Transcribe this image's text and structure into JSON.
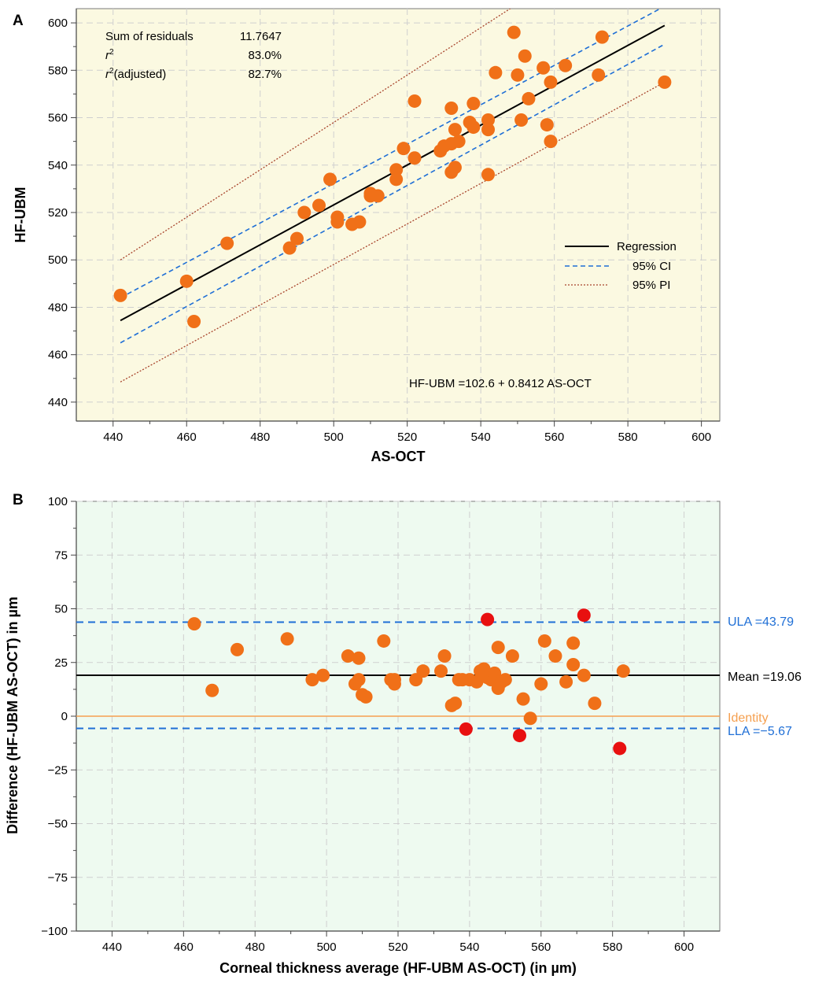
{
  "chart_data": [
    {
      "panel": "A",
      "type": "scatter",
      "xlabel": "AS-OCT",
      "ylabel": "HF-UBM",
      "xlim": [
        430,
        605
      ],
      "ylim": [
        432,
        606
      ],
      "x_ticks": [
        440,
        460,
        480,
        500,
        520,
        540,
        560,
        580,
        600
      ],
      "y_ticks": [
        440,
        460,
        480,
        500,
        520,
        540,
        560,
        580,
        600
      ],
      "grid": true,
      "background": "#fbf9e1",
      "stats": [
        {
          "label": "Sum of residuals",
          "value": "11.7647"
        },
        {
          "label": "r",
          "sup": "2",
          "label_suffix": "",
          "value": "83.0%"
        },
        {
          "label": "r",
          "sup": "2",
          "label_suffix": "(adjusted)",
          "value": "82.7%"
        }
      ],
      "equation": "HF-UBM =102.6 + 0.8412 AS-OCT",
      "legend": {
        "placement": "right",
        "entries": [
          {
            "name": "Regression",
            "style": "solid",
            "color": "#000000"
          },
          {
            "name": "95% CI",
            "style": "dashed",
            "color": "#1f6fd6"
          },
          {
            "name": "95% PI",
            "style": "dotted",
            "color": "#a8442c"
          }
        ]
      },
      "regression": {
        "intercept": 102.6,
        "slope": 0.8412,
        "x_range": [
          442,
          590
        ]
      },
      "ci_lines": [
        {
          "x": [
            442,
            590
          ],
          "y": [
            465,
            591
          ]
        },
        {
          "x": [
            442,
            590
          ],
          "y": [
            484,
            607
          ]
        }
      ],
      "pi_lines": [
        {
          "x": [
            442,
            590
          ],
          "y": [
            500,
            648
          ]
        },
        {
          "x": [
            442,
            590
          ],
          "y": [
            448.5,
            575
          ]
        }
      ],
      "points": [
        {
          "x": 442,
          "y": 485
        },
        {
          "x": 460,
          "y": 491
        },
        {
          "x": 462,
          "y": 474
        },
        {
          "x": 471,
          "y": 507
        },
        {
          "x": 488,
          "y": 505
        },
        {
          "x": 490,
          "y": 509
        },
        {
          "x": 492,
          "y": 520
        },
        {
          "x": 496,
          "y": 523
        },
        {
          "x": 499,
          "y": 534
        },
        {
          "x": 501,
          "y": 516
        },
        {
          "x": 501,
          "y": 518
        },
        {
          "x": 505,
          "y": 515
        },
        {
          "x": 507,
          "y": 516
        },
        {
          "x": 510,
          "y": 527
        },
        {
          "x": 510,
          "y": 528
        },
        {
          "x": 512,
          "y": 527
        },
        {
          "x": 517,
          "y": 534
        },
        {
          "x": 517,
          "y": 538
        },
        {
          "x": 519,
          "y": 547
        },
        {
          "x": 522,
          "y": 543
        },
        {
          "x": 522,
          "y": 567
        },
        {
          "x": 529,
          "y": 546
        },
        {
          "x": 530,
          "y": 548
        },
        {
          "x": 532,
          "y": 549
        },
        {
          "x": 532,
          "y": 564
        },
        {
          "x": 532,
          "y": 537
        },
        {
          "x": 533,
          "y": 539
        },
        {
          "x": 533,
          "y": 555
        },
        {
          "x": 534,
          "y": 550
        },
        {
          "x": 537,
          "y": 558
        },
        {
          "x": 538,
          "y": 566
        },
        {
          "x": 538,
          "y": 556
        },
        {
          "x": 542,
          "y": 559
        },
        {
          "x": 542,
          "y": 555
        },
        {
          "x": 542,
          "y": 536
        },
        {
          "x": 544,
          "y": 579
        },
        {
          "x": 549,
          "y": 596
        },
        {
          "x": 550,
          "y": 578
        },
        {
          "x": 551,
          "y": 559
        },
        {
          "x": 552,
          "y": 586
        },
        {
          "x": 553,
          "y": 568
        },
        {
          "x": 557,
          "y": 581
        },
        {
          "x": 558,
          "y": 557
        },
        {
          "x": 559,
          "y": 575
        },
        {
          "x": 559,
          "y": 550
        },
        {
          "x": 563,
          "y": 582
        },
        {
          "x": 572,
          "y": 578
        },
        {
          "x": 573,
          "y": 594
        },
        {
          "x": 590,
          "y": 575
        }
      ],
      "point_color": "#f07018"
    },
    {
      "panel": "B",
      "type": "scatter",
      "xlabel": "Corneal thickness average (HF-UBM AS-OCT) (in µm)",
      "ylabel": "Difference (HF-UBM AS-OCT) in µm",
      "xlim": [
        430,
        610
      ],
      "ylim": [
        -100,
        100
      ],
      "x_ticks": [
        440,
        460,
        480,
        500,
        520,
        540,
        560,
        580,
        600
      ],
      "y_ticks": [
        -100,
        -75,
        -50,
        -25,
        0,
        25,
        50,
        75,
        100
      ],
      "y_tick_labels": [
        "−100",
        "−75",
        "−50",
        "−25",
        "0",
        "25",
        "50",
        "75",
        "100"
      ],
      "grid": true,
      "background": "#eefaf0",
      "reference_lines": [
        {
          "name": "ULA",
          "label": "ULA =43.79",
          "value": 43.79,
          "style": "dashed",
          "color": "#1f6fd6"
        },
        {
          "name": "Mean",
          "label": "Mean =19.06",
          "value": 19.06,
          "style": "solid",
          "color": "#000000"
        },
        {
          "name": "Identity",
          "label": "Identity",
          "value": 0,
          "style": "solid",
          "color": "#f5a050"
        },
        {
          "name": "LLA",
          "label": "LLA =−5.67",
          "value": -5.67,
          "style": "dashed",
          "color": "#1f6fd6"
        }
      ],
      "points": [
        {
          "x": 463,
          "y": 43,
          "color": "#f07018"
        },
        {
          "x": 468,
          "y": 12,
          "color": "#f07018"
        },
        {
          "x": 475,
          "y": 31,
          "color": "#f07018"
        },
        {
          "x": 489,
          "y": 36,
          "color": "#f07018"
        },
        {
          "x": 496,
          "y": 17,
          "color": "#f07018"
        },
        {
          "x": 499,
          "y": 19,
          "color": "#f07018"
        },
        {
          "x": 506,
          "y": 28,
          "color": "#f07018"
        },
        {
          "x": 508,
          "y": 15,
          "color": "#f07018"
        },
        {
          "x": 509,
          "y": 27,
          "color": "#f07018"
        },
        {
          "x": 509,
          "y": 17,
          "color": "#f07018"
        },
        {
          "x": 510,
          "y": 10,
          "color": "#f07018"
        },
        {
          "x": 511,
          "y": 9,
          "color": "#f07018"
        },
        {
          "x": 516,
          "y": 35,
          "color": "#f07018"
        },
        {
          "x": 518,
          "y": 17,
          "color": "#f07018"
        },
        {
          "x": 519,
          "y": 17,
          "color": "#f07018"
        },
        {
          "x": 519,
          "y": 15,
          "color": "#f07018"
        },
        {
          "x": 525,
          "y": 17,
          "color": "#f07018"
        },
        {
          "x": 527,
          "y": 21,
          "color": "#f07018"
        },
        {
          "x": 532,
          "y": 21,
          "color": "#f07018"
        },
        {
          "x": 533,
          "y": 28,
          "color": "#f07018"
        },
        {
          "x": 535,
          "y": 5,
          "color": "#f07018"
        },
        {
          "x": 536,
          "y": 6,
          "color": "#f07018"
        },
        {
          "x": 537,
          "y": 17,
          "color": "#f07018"
        },
        {
          "x": 538,
          "y": 17,
          "color": "#f07018"
        },
        {
          "x": 540,
          "y": 17,
          "color": "#f07018"
        },
        {
          "x": 542,
          "y": 16,
          "color": "#f07018"
        },
        {
          "x": 543,
          "y": 21,
          "color": "#f07018"
        },
        {
          "x": 544,
          "y": 22,
          "color": "#f07018"
        },
        {
          "x": 545,
          "y": 18,
          "color": "#f07018"
        },
        {
          "x": 546,
          "y": 17,
          "color": "#f07018"
        },
        {
          "x": 547,
          "y": 20,
          "color": "#f07018"
        },
        {
          "x": 548,
          "y": 32,
          "color": "#f07018"
        },
        {
          "x": 548,
          "y": 13,
          "color": "#f07018"
        },
        {
          "x": 549,
          "y": 16,
          "color": "#f07018"
        },
        {
          "x": 550,
          "y": 17,
          "color": "#f07018"
        },
        {
          "x": 552,
          "y": 28,
          "color": "#f07018"
        },
        {
          "x": 555,
          "y": 8,
          "color": "#f07018"
        },
        {
          "x": 557,
          "y": -1,
          "color": "#f07018"
        },
        {
          "x": 560,
          "y": 15,
          "color": "#f07018"
        },
        {
          "x": 561,
          "y": 35,
          "color": "#f07018"
        },
        {
          "x": 564,
          "y": 28,
          "color": "#f07018"
        },
        {
          "x": 567,
          "y": 16,
          "color": "#f07018"
        },
        {
          "x": 569,
          "y": 34,
          "color": "#f07018"
        },
        {
          "x": 569,
          "y": 24,
          "color": "#f07018"
        },
        {
          "x": 572,
          "y": 19,
          "color": "#f07018"
        },
        {
          "x": 575,
          "y": 6,
          "color": "#f07018"
        },
        {
          "x": 583,
          "y": 21,
          "color": "#f07018"
        },
        {
          "x": 545,
          "y": 45,
          "color": "#e81010"
        },
        {
          "x": 572,
          "y": 47,
          "color": "#e81010"
        },
        {
          "x": 539,
          "y": -6,
          "color": "#e81010"
        },
        {
          "x": 554,
          "y": -9,
          "color": "#e81010"
        },
        {
          "x": 582,
          "y": -15,
          "color": "#e81010"
        }
      ]
    }
  ]
}
